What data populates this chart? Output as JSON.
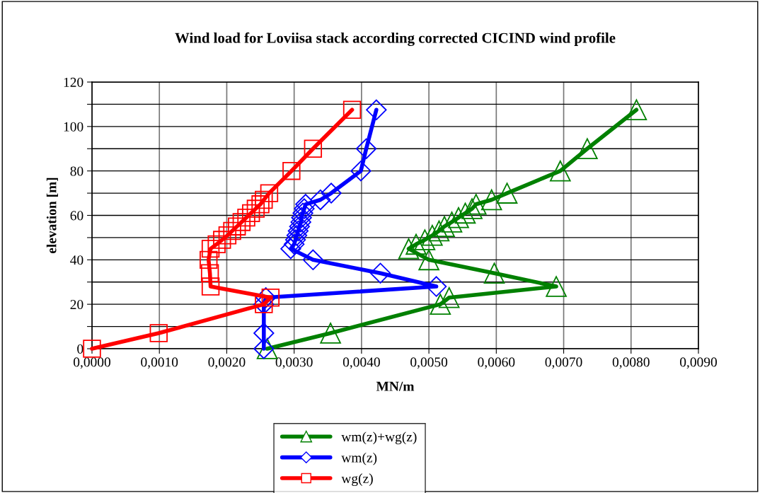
{
  "chart_data": {
    "type": "line",
    "title": "Wind load for Loviisa stack according corrected CICIND wind profile",
    "xlabel": "MN/m",
    "ylabel": "elevation [m]",
    "series": [
      {
        "name": "wm(z)+wg(z)",
        "color": "#008000",
        "marker": "triangle",
        "x": [
          0.0026,
          0.00354,
          0.00517,
          0.0053,
          0.00689,
          0.00597,
          0.005,
          0.0047,
          0.00481,
          0.00494,
          0.00505,
          0.00515,
          0.00523,
          0.00534,
          0.00544,
          0.00554,
          0.00564,
          0.0057,
          0.00593,
          0.00616,
          0.00695,
          0.00735,
          0.00808
        ],
        "values": [
          0,
          7,
          20,
          23,
          28,
          34,
          40,
          45,
          47,
          49,
          51,
          53,
          55,
          57,
          59,
          61,
          63,
          65,
          67,
          70,
          80,
          90,
          107.5
        ]
      },
      {
        "name": "wm(z)",
        "color": "#0000ff",
        "marker": "diamond",
        "x": [
          0.00255,
          0.00255,
          0.00255,
          0.00258,
          0.00511,
          0.00428,
          0.00328,
          0.00295,
          0.003,
          0.00302,
          0.00304,
          0.00306,
          0.00308,
          0.0031,
          0.00311,
          0.00313,
          0.00315,
          0.00317,
          0.00339,
          0.00355,
          0.00399,
          0.00407,
          0.00422
        ],
        "values": [
          0,
          7,
          20,
          23,
          28,
          34,
          40,
          45,
          47,
          49,
          51,
          53,
          55,
          57,
          59,
          61,
          63,
          65,
          67,
          70,
          80,
          90,
          107.5
        ]
      },
      {
        "name": "wg(z)",
        "color": "#ff0000",
        "marker": "square",
        "x": [
          0.0,
          0.00099,
          0.00255,
          0.00265,
          0.00176,
          0.00175,
          0.00173,
          0.00176,
          0.00185,
          0.00193,
          0.00201,
          0.00208,
          0.00215,
          0.00222,
          0.00229,
          0.00236,
          0.00243,
          0.0025,
          0.00255,
          0.00263,
          0.00296,
          0.00328,
          0.00386
        ],
        "values": [
          0,
          7,
          20,
          23,
          28,
          34,
          40,
          45,
          47,
          49,
          51,
          53,
          55,
          57,
          59,
          61,
          63,
          65,
          67,
          70,
          80,
          90,
          107.5
        ]
      }
    ],
    "xlim": [
      0.0,
      0.009
    ],
    "xticks": [
      {
        "value": 0.0,
        "label": "0,0000"
      },
      {
        "value": 0.001,
        "label": "0,0010"
      },
      {
        "value": 0.002,
        "label": "0,0020"
      },
      {
        "value": 0.003,
        "label": "0,0030"
      },
      {
        "value": 0.004,
        "label": "0,0040"
      },
      {
        "value": 0.005,
        "label": "0,0050"
      },
      {
        "value": 0.006,
        "label": "0,0060"
      },
      {
        "value": 0.007,
        "label": "0,0070"
      },
      {
        "value": 0.008,
        "label": "0,0080"
      },
      {
        "value": 0.009,
        "label": "0,0090"
      }
    ],
    "ylim": [
      0,
      120
    ],
    "yticks": [
      0,
      {
        "value": 10,
        "label": null
      },
      20,
      {
        "value": 30,
        "label": null
      },
      40,
      {
        "value": 50,
        "label": null
      },
      60,
      {
        "value": 70,
        "label": null
      },
      80,
      {
        "value": 90,
        "label": null
      },
      100,
      {
        "value": 110,
        "label": null
      },
      120
    ],
    "grid": true,
    "legend": "bottom",
    "line_style": "solid"
  }
}
